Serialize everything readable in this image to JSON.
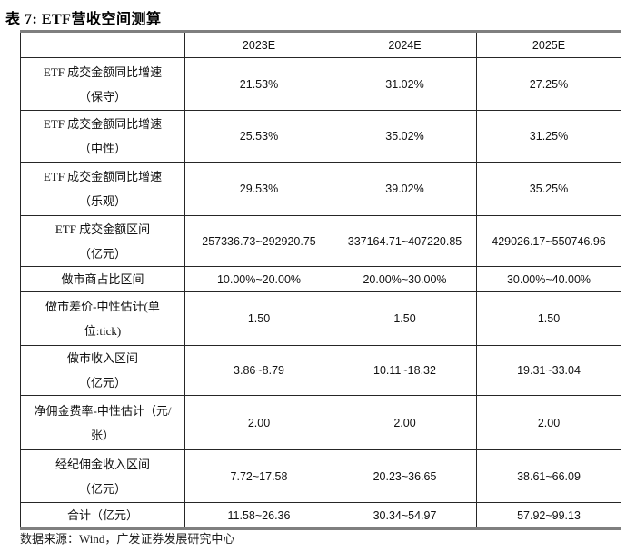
{
  "page": {
    "title": "表 7: ETF营收空间测算",
    "source": "数据来源：Wind，广发证券发展研究中心"
  },
  "table": {
    "columns": [
      "",
      "2023E",
      "2024E",
      "2025E"
    ],
    "rows": [
      {
        "label_lines": [
          "ETF 成交金额同比增速",
          "（保守）"
        ],
        "values": [
          "21.53%",
          "31.02%",
          "27.25%"
        ]
      },
      {
        "label_lines": [
          "ETF 成交金额同比增速",
          "（中性）"
        ],
        "values": [
          "25.53%",
          "35.02%",
          "31.25%"
        ]
      },
      {
        "label_lines": [
          "ETF 成交金额同比增速",
          "（乐观）"
        ],
        "values": [
          "29.53%",
          "39.02%",
          "35.25%"
        ]
      },
      {
        "label_lines": [
          "ETF 成交金额区间",
          "（亿元）"
        ],
        "values": [
          "257336.73~292920.75",
          "337164.71~407220.85",
          "429026.17~550746.96"
        ]
      },
      {
        "label_lines": [
          "做市商占比区间"
        ],
        "values": [
          "10.00%~20.00%",
          "20.00%~30.00%",
          "30.00%~40.00%"
        ]
      },
      {
        "label_lines": [
          "做市差价-中性估计(单",
          "位:tick)"
        ],
        "values": [
          "1.50",
          "1.50",
          "1.50"
        ]
      },
      {
        "label_lines": [
          "做市收入区间",
          "（亿元）"
        ],
        "values": [
          "3.86~8.79",
          "10.11~18.32",
          "19.31~33.04"
        ]
      },
      {
        "label_lines": [
          "净佣金费率-中性估计（元/",
          "张）"
        ],
        "values": [
          "2.00",
          "2.00",
          "2.00"
        ]
      },
      {
        "label_lines": [
          "经纪佣金收入区间",
          "（亿元）"
        ],
        "values": [
          "7.72~17.58",
          "20.23~36.65",
          "38.61~66.09"
        ]
      },
      {
        "label_lines": [
          "合计（亿元）"
        ],
        "values": [
          "11.58~26.36",
          "30.34~54.97",
          "57.92~99.13"
        ]
      }
    ]
  },
  "colors": {
    "text": "#111111",
    "inner_border": "#262626",
    "outer_border": "#7f7f7f",
    "background": "#ffffff"
  }
}
